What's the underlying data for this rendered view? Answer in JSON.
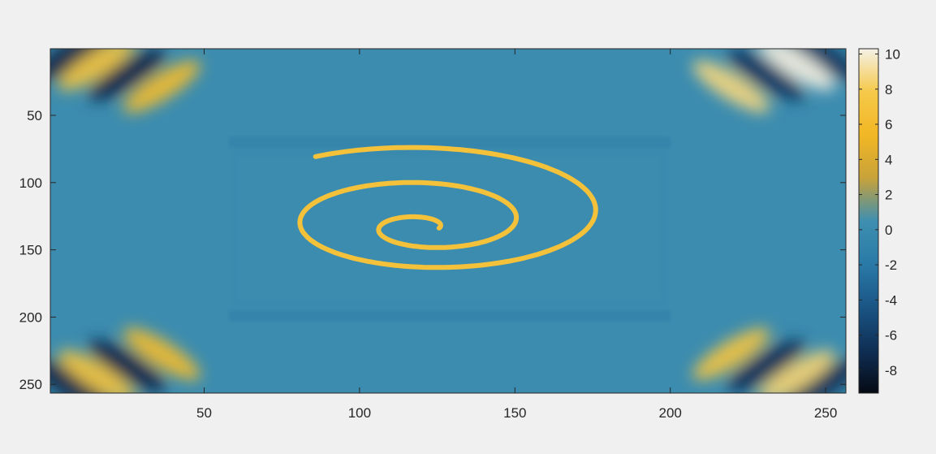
{
  "chart_data": {
    "type": "heatmap",
    "title": "",
    "xlabel": "",
    "ylabel": "",
    "xlim": [
      0.5,
      256.5
    ],
    "ylim": [
      0.5,
      256.5
    ],
    "y_reversed": true,
    "x_ticks": [
      50,
      100,
      150,
      200,
      250
    ],
    "x_tick_labels": [
      "50",
      "100",
      "150",
      "200",
      "250"
    ],
    "y_ticks": [
      50,
      100,
      150,
      200,
      250
    ],
    "y_tick_labels": [
      "50",
      "100",
      "150",
      "200",
      "250"
    ],
    "colorbar": {
      "range": [
        -9.3,
        10.3
      ],
      "ticks": [
        -8,
        -6,
        -4,
        -2,
        0,
        2,
        4,
        6,
        8,
        10
      ],
      "tick_labels": [
        "-8",
        "-6",
        "-4",
        "-2",
        "0",
        "2",
        "4",
        "6",
        "8",
        "10"
      ],
      "colormap": "parula-like",
      "colors": [
        "#050a14",
        "#0f2f55",
        "#1a5585",
        "#2a7aa8",
        "#3e8fb0",
        "#c8a23a",
        "#f2b724",
        "#f5c94a",
        "#f5f1e6"
      ]
    },
    "background_value": 0.2,
    "features": [
      {
        "kind": "spiral",
        "center": [
          122,
          135
        ],
        "value": 6.8,
        "note": "bright spiral arm"
      },
      {
        "kind": "band",
        "rows": [
          66,
          74
        ],
        "value": -1.5
      },
      {
        "kind": "band",
        "rows": [
          195,
          203
        ],
        "value": -1.5
      },
      {
        "kind": "corner-wave",
        "corner": "top-left",
        "values": [
          7,
          -7.5
        ]
      },
      {
        "kind": "corner-wave",
        "corner": "top-right",
        "values": [
          10.2,
          -6.5
        ]
      },
      {
        "kind": "corner-wave",
        "corner": "bottom-left",
        "values": [
          7,
          -7.5
        ]
      },
      {
        "kind": "corner-wave",
        "corner": "bottom-right",
        "values": [
          8.5,
          -7
        ]
      }
    ]
  }
}
